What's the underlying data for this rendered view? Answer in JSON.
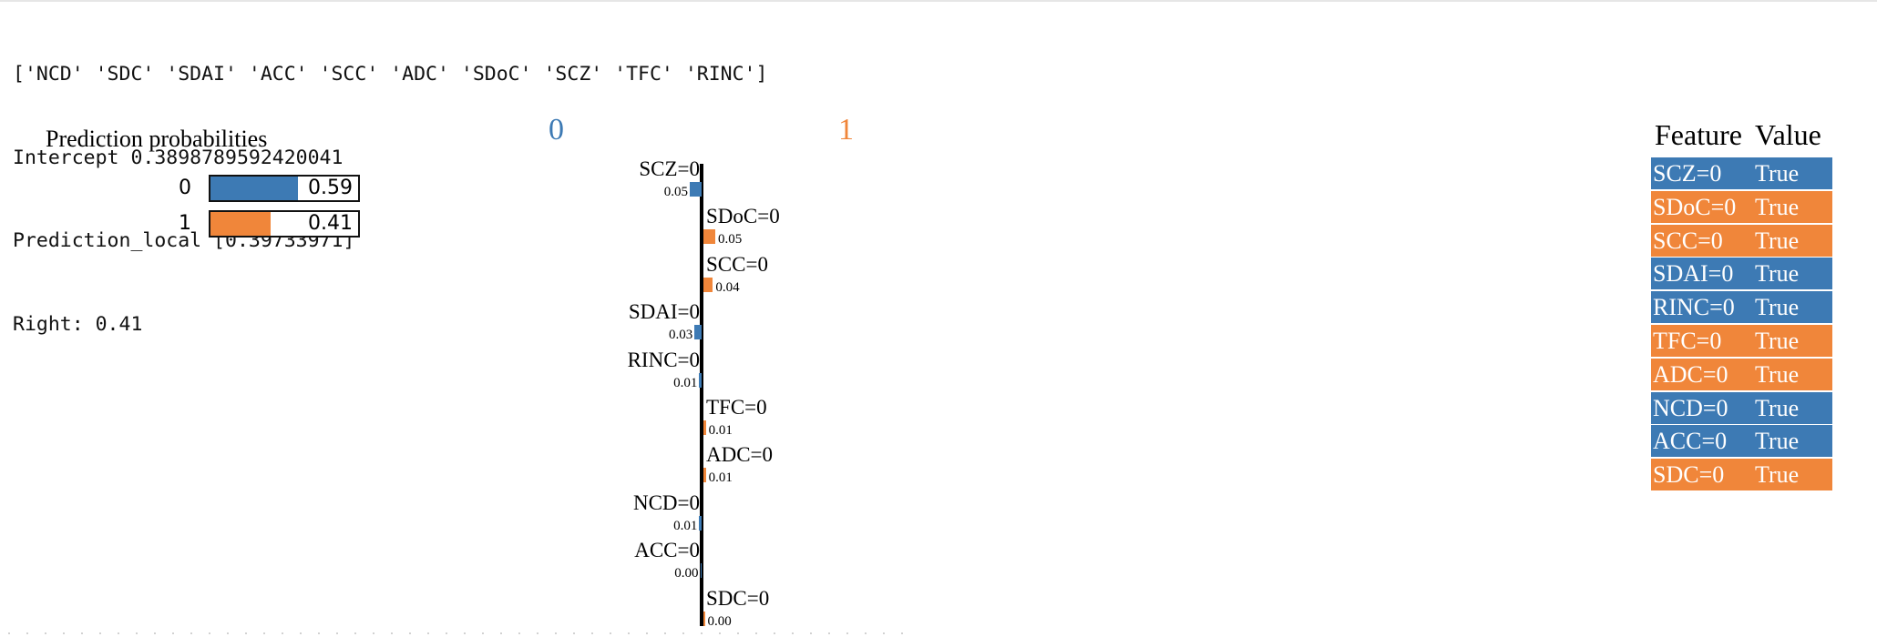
{
  "console": {
    "line1": "['NCD' 'SDC' 'SDAI' 'ACC' 'SCC' 'ADC' 'SDoC' 'SCZ' 'TFC' 'RINC']",
    "line2": "Intercept 0.3898789592420041",
    "line3": "Prediction_local [0.39733971]",
    "line4": "Right: 0.41"
  },
  "colors": {
    "class0": "#3d7ab4",
    "class1": "#f0863a"
  },
  "prediction_probabilities": {
    "title": "Prediction probabilities",
    "rows": [
      {
        "label": "0",
        "value": "0.59",
        "fraction": 0.59
      },
      {
        "label": "1",
        "value": "0.41",
        "fraction": 0.41
      }
    ]
  },
  "chart_data": {
    "type": "bar",
    "orientation": "horizontal",
    "class_labels": [
      "0",
      "1"
    ],
    "categories": [
      "SCZ=0",
      "SDoC=0",
      "SCC=0",
      "SDAI=0",
      "RINC=0",
      "TFC=0",
      "ADC=0",
      "NCD=0",
      "ACC=0",
      "SDC=0"
    ],
    "weight_labels": [
      "0.05",
      "0.05",
      "0.04",
      "0.03",
      "0.01",
      "0.01",
      "0.01",
      "0.01",
      "0.00",
      "0.00"
    ],
    "values": [
      -0.05,
      0.05,
      0.04,
      -0.03,
      -0.01,
      0.01,
      0.01,
      -0.01,
      -0.002,
      0.002
    ]
  },
  "feature_table": {
    "header_feature": "Feature",
    "header_value": "Value",
    "rows": [
      {
        "feature": "SCZ=0",
        "value": "True",
        "class": 0
      },
      {
        "feature": "SDoC=0",
        "value": "True",
        "class": 1
      },
      {
        "feature": "SCC=0",
        "value": "True",
        "class": 1
      },
      {
        "feature": "SDAI=0",
        "value": "True",
        "class": 0
      },
      {
        "feature": "RINC=0",
        "value": "True",
        "class": 0
      },
      {
        "feature": "TFC=0",
        "value": "True",
        "class": 1
      },
      {
        "feature": "ADC=0",
        "value": "True",
        "class": 1
      },
      {
        "feature": "NCD=0",
        "value": "True",
        "class": 0
      },
      {
        "feature": "ACC=0",
        "value": "True",
        "class": 0
      },
      {
        "feature": "SDC=0",
        "value": "True",
        "class": 1
      }
    ]
  }
}
